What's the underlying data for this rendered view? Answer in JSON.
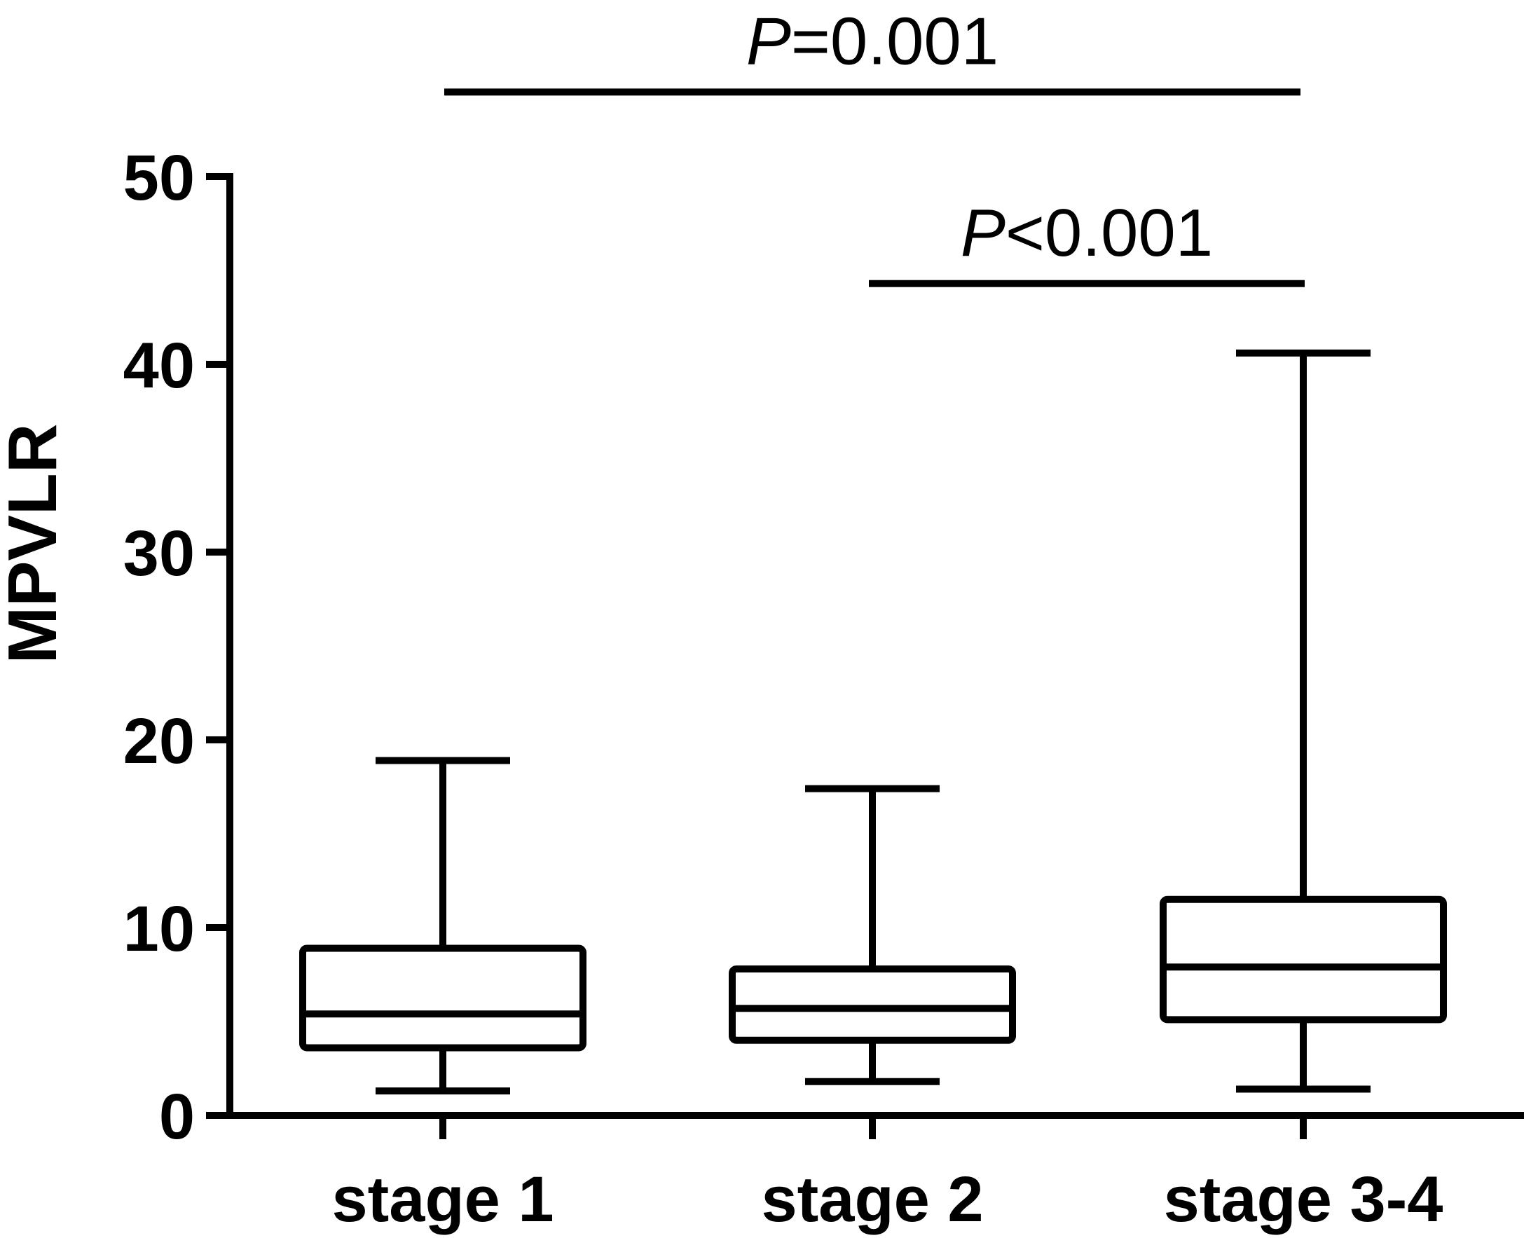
{
  "chart_data": {
    "type": "box",
    "ylabel": "MPVLR",
    "xlabel": "",
    "ylim": [
      0,
      50
    ],
    "yticks": [
      0,
      10,
      20,
      30,
      40,
      50
    ],
    "categories": [
      "stage 1",
      "stage 2",
      "stage 3-4"
    ],
    "boxes": [
      {
        "category": "stage 1",
        "min": 1.3,
        "q1": 3.6,
        "median": 5.4,
        "q3": 8.9,
        "max": 18.9
      },
      {
        "category": "stage 2",
        "min": 1.8,
        "q1": 4.0,
        "median": 5.7,
        "q3": 7.8,
        "max": 17.4
      },
      {
        "category": "stage 3-4",
        "min": 1.4,
        "q1": 5.1,
        "median": 7.9,
        "q3": 11.5,
        "max": 40.6
      }
    ],
    "annotations": [
      {
        "from": "stage 1",
        "to": "stage 3-4",
        "y": 54.5,
        "prefix": "P",
        "text": "=0.001"
      },
      {
        "from": "stage 2",
        "to": "stage 3-4",
        "y": 44.3,
        "prefix": "P",
        "text": "<0.001"
      }
    ],
    "grid": false,
    "legend": "none"
  }
}
